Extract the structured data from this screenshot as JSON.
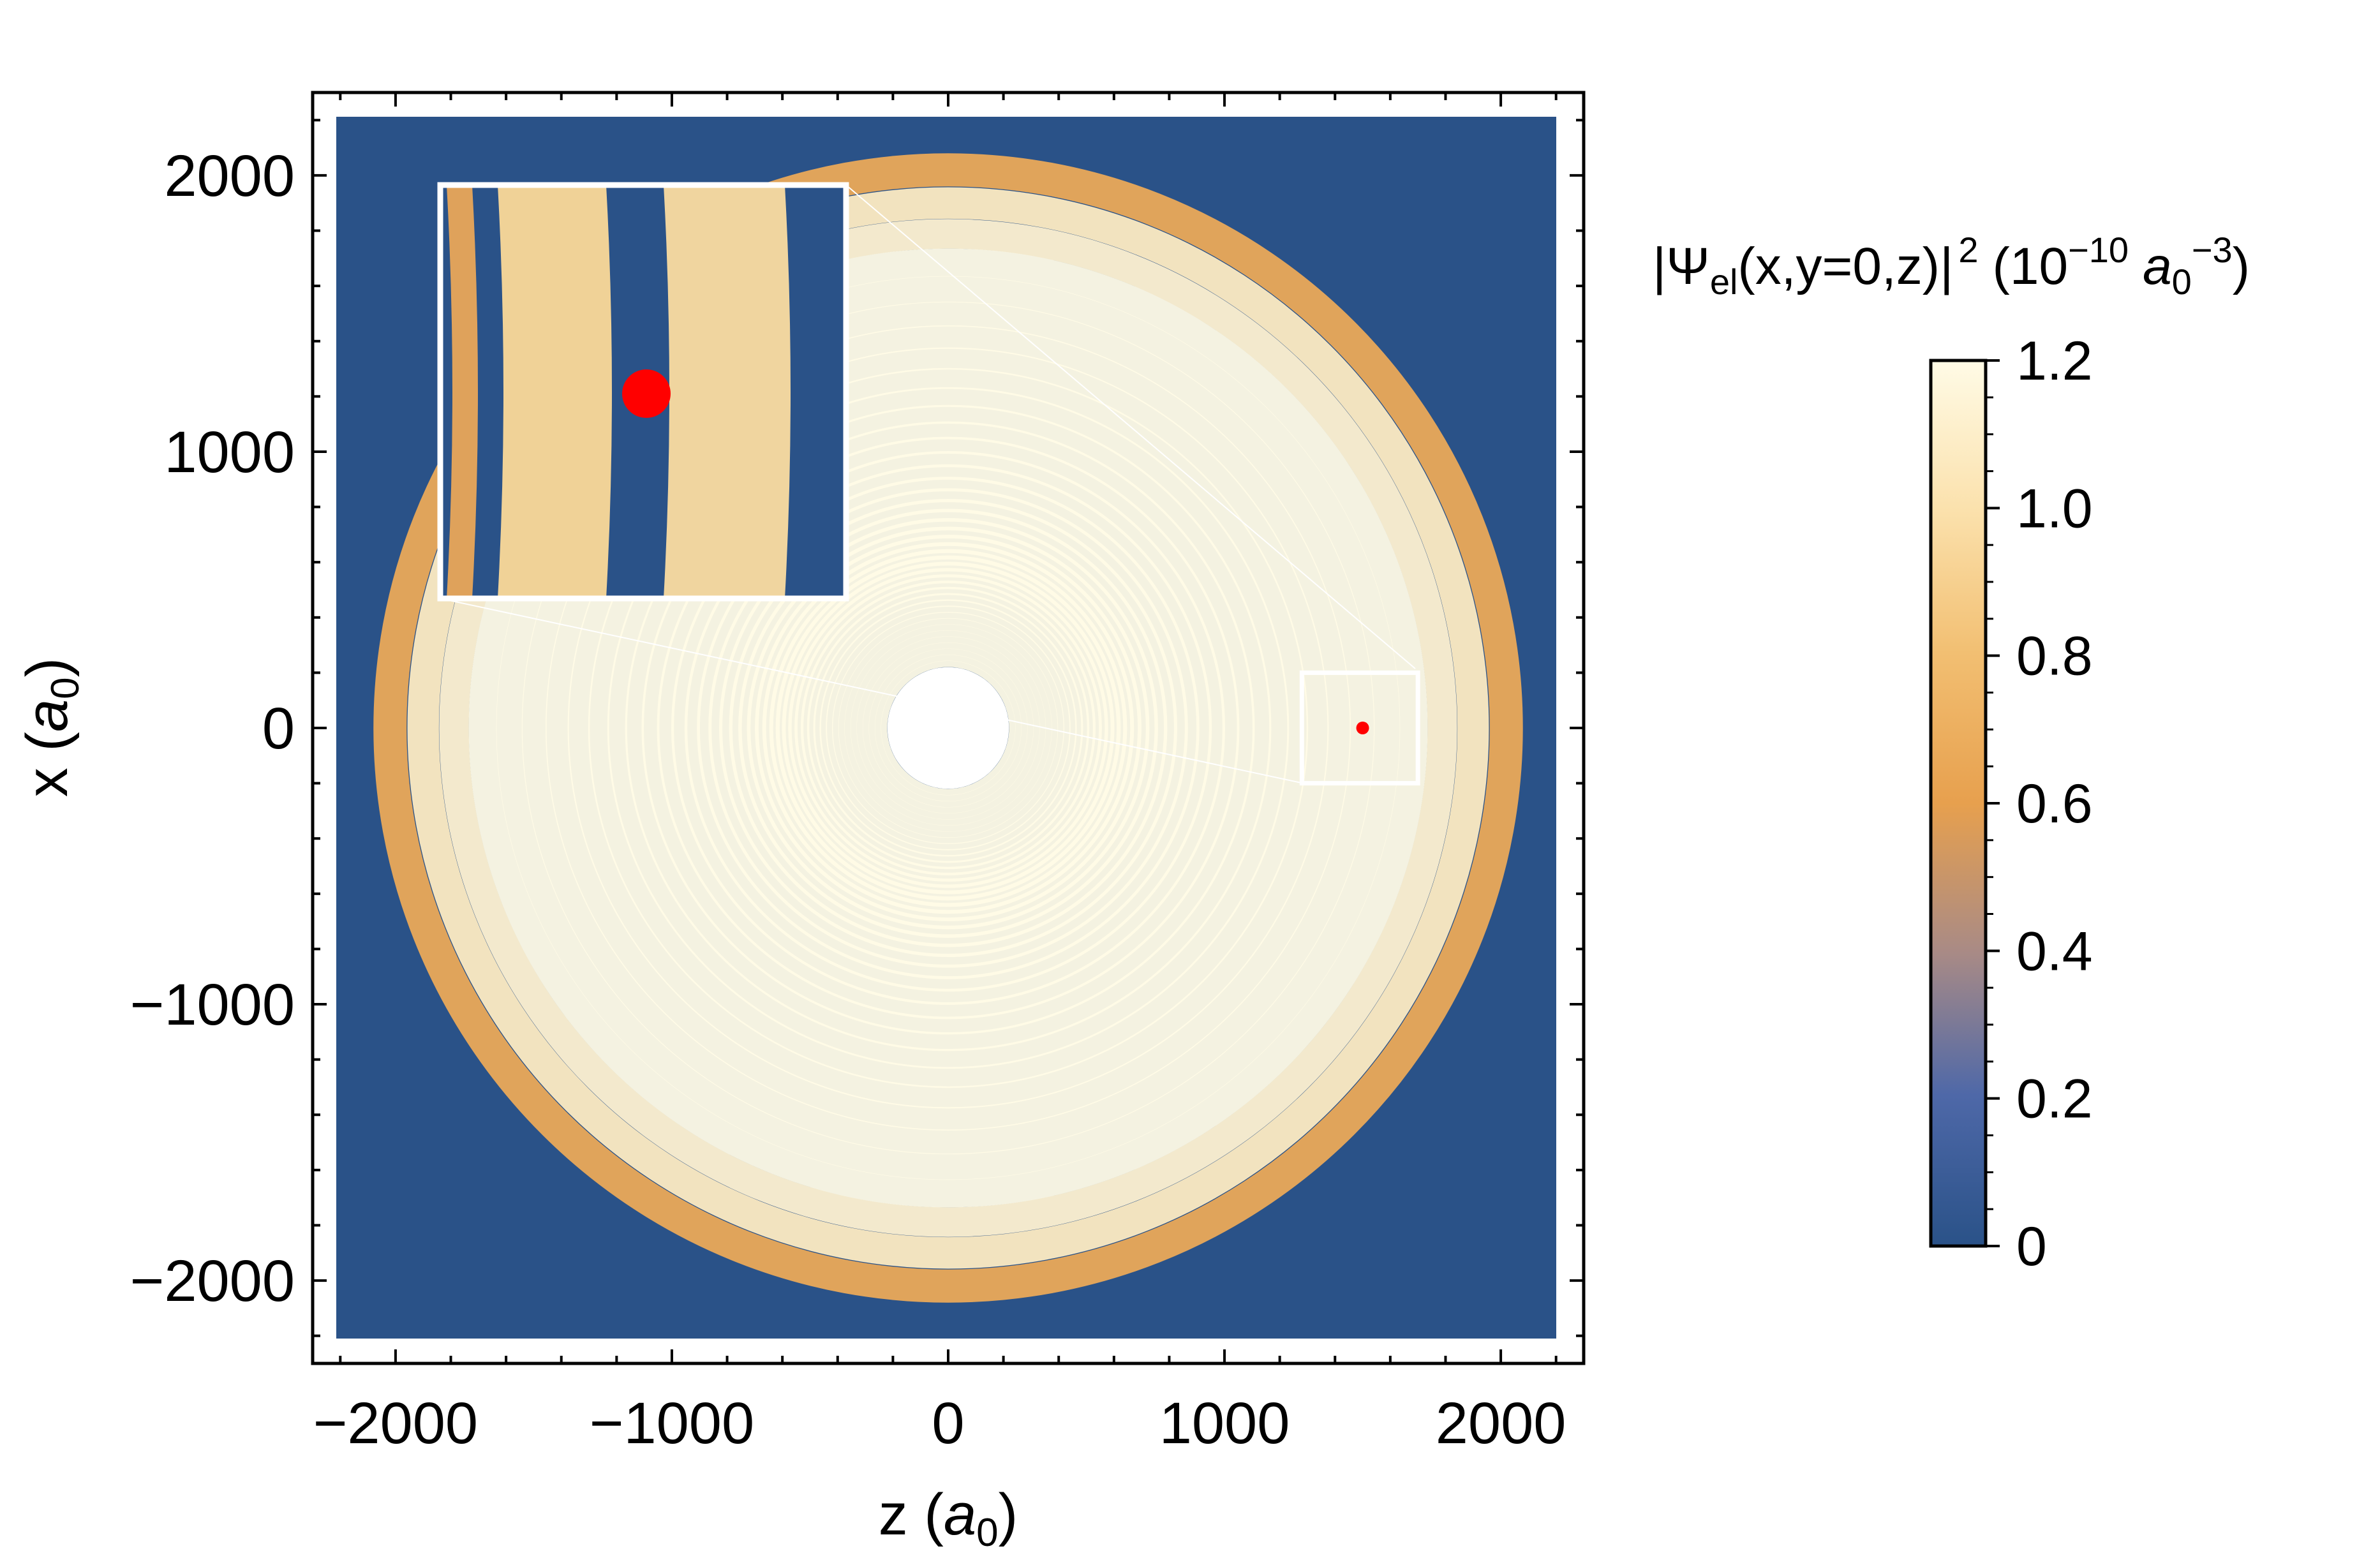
{
  "chart_data": {
    "type": "heatmap",
    "xlabel": {
      "main": "z (",
      "var": "a",
      "sub": "0",
      "close": ")"
    },
    "ylabel": {
      "main": "x (",
      "var": "a",
      "sub": "0",
      "close": ")"
    },
    "xlim": [
      -2300,
      2300
    ],
    "ylim": [
      -2300,
      2300
    ],
    "plot_range": [
      -2200,
      2200
    ],
    "x_ticks": [
      -2000,
      -1000,
      0,
      1000,
      2000
    ],
    "y_ticks": [
      -2000,
      -1000,
      0,
      1000,
      2000
    ],
    "x_tick_labels": [
      "−2000",
      "−1000",
      "0",
      "1000",
      "2000"
    ],
    "y_tick_labels": [
      "−2000",
      "−1000",
      "0",
      "1000",
      "2000"
    ],
    "colorbar": {
      "title": {
        "psi": "|Ψ",
        "psi_sub": "el",
        "args": "(x,y=0,z)",
        "bar": "|",
        "power": "2",
        "units_open": "(10",
        "units_exp": "−10",
        "units_var": "a",
        "units_sub": "0",
        "units_exp2": "−3",
        "units_close": ")"
      },
      "range": [
        0,
        1.2
      ],
      "ticks": [
        0,
        0.2,
        0.4,
        0.6,
        0.8,
        1.0,
        1.2
      ],
      "tick_labels": [
        "0",
        "0.2",
        "0.4",
        "0.6",
        "0.8",
        "1.0",
        "1.2"
      ],
      "colors": [
        "#2a5288",
        "#4e68a8",
        "#a88a86",
        "#e7a04e",
        "#f2bf72",
        "#fbe1ac",
        "#fffbe6"
      ]
    },
    "pattern": "concentric interference rings centred at origin, fringe spacing increasing with radius, outer envelope ~2000 a0, saturated white core",
    "marker": {
      "z": 1500,
      "x": 0,
      "color": "#ff0000"
    },
    "zoom_box": {
      "zmin": 1280,
      "zmax": 1700,
      "xmin": -200,
      "xmax": 200
    },
    "inset": {
      "zmin": -1850,
      "zmax": -380,
      "xmin": 460,
      "xmax": 1950,
      "border": "#ffffff"
    }
  }
}
